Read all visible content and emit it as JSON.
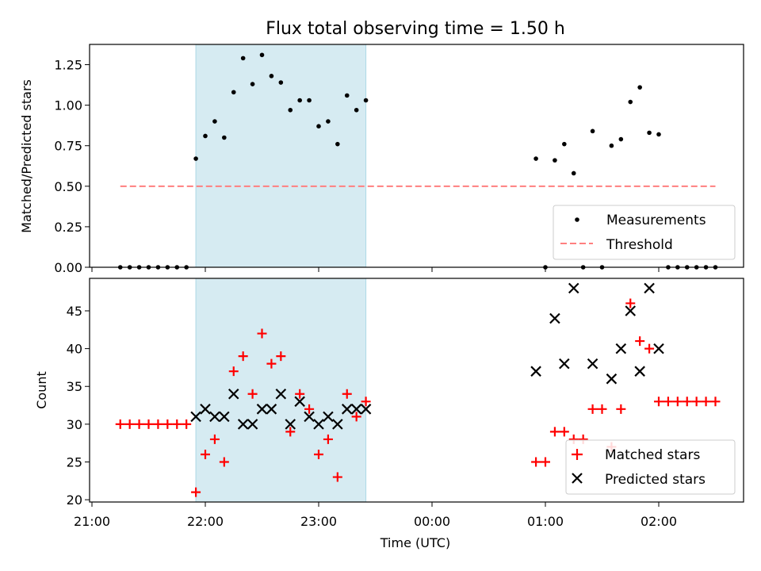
{
  "title": "Flux total observing time = 1.50 h",
  "colors": {
    "span": "#add8e6",
    "threshold": "#ff7f7f",
    "matched": "#ff0000",
    "predicted": "#000000",
    "measurement": "#000000"
  },
  "chart_data": [
    {
      "type": "scatter",
      "ylabel": "Matched/Predicted stars",
      "ylim": [
        0,
        1.375
      ],
      "yticks": [
        0.0,
        0.25,
        0.5,
        0.75,
        1.0,
        1.25
      ],
      "ytick_labels": [
        "0.00",
        "0.25",
        "0.50",
        "0.75",
        "1.00",
        "1.25"
      ],
      "shaded_span": [
        "21:55",
        "23:25"
      ],
      "threshold": {
        "name": "Threshold",
        "value": 0.5,
        "x_start": "21:15",
        "x_end": "02:30",
        "style": "dashed"
      },
      "legend": "lower-right",
      "series": [
        {
          "name": "Measurements",
          "marker": "dot",
          "points": [
            [
              "21:15",
              0
            ],
            [
              "21:20",
              0
            ],
            [
              "21:25",
              0
            ],
            [
              "21:30",
              0
            ],
            [
              "21:35",
              0
            ],
            [
              "21:40",
              0
            ],
            [
              "21:45",
              0
            ],
            [
              "21:50",
              0
            ],
            [
              "21:55",
              0.67
            ],
            [
              "22:00",
              0.81
            ],
            [
              "22:05",
              0.9
            ],
            [
              "22:10",
              0.8
            ],
            [
              "22:15",
              1.08
            ],
            [
              "22:20",
              1.29
            ],
            [
              "22:25",
              1.13
            ],
            [
              "22:30",
              1.31
            ],
            [
              "22:35",
              1.18
            ],
            [
              "22:40",
              1.14
            ],
            [
              "22:45",
              0.97
            ],
            [
              "22:50",
              1.03
            ],
            [
              "22:55",
              1.03
            ],
            [
              "23:00",
              0.87
            ],
            [
              "23:05",
              0.9
            ],
            [
              "23:10",
              0.76
            ],
            [
              "23:15",
              1.06
            ],
            [
              "23:20",
              0.97
            ],
            [
              "23:25",
              1.03
            ],
            [
              "00:55",
              0.67
            ],
            [
              "01:00",
              0
            ],
            [
              "01:05",
              0.66
            ],
            [
              "01:10",
              0.76
            ],
            [
              "01:15",
              0.58
            ],
            [
              "01:20",
              0
            ],
            [
              "01:25",
              0.84
            ],
            [
              "01:30",
              0
            ],
            [
              "01:35",
              0.75
            ],
            [
              "01:40",
              0.79
            ],
            [
              "01:45",
              1.02
            ],
            [
              "01:50",
              1.11
            ],
            [
              "01:55",
              0.83
            ],
            [
              "02:00",
              0.82
            ],
            [
              "02:05",
              0
            ],
            [
              "02:10",
              0
            ],
            [
              "02:15",
              0
            ],
            [
              "02:20",
              0
            ],
            [
              "02:25",
              0
            ],
            [
              "02:30",
              0
            ]
          ]
        }
      ]
    },
    {
      "type": "scatter",
      "xlabel": "Time (UTC)",
      "ylabel": "Count",
      "ylim": [
        19.7,
        49.3
      ],
      "yticks": [
        20,
        25,
        30,
        35,
        40,
        45
      ],
      "ytick_labels": [
        "20",
        "25",
        "30",
        "35",
        "40",
        "45"
      ],
      "xticks": [
        "21:00",
        "22:00",
        "23:00",
        "00:00",
        "01:00",
        "02:00"
      ],
      "shaded_span": [
        "21:55",
        "23:25"
      ],
      "legend": "lower-right",
      "series": [
        {
          "name": "Matched stars",
          "marker": "plus",
          "points": [
            [
              "21:15",
              30
            ],
            [
              "21:20",
              30
            ],
            [
              "21:25",
              30
            ],
            [
              "21:30",
              30
            ],
            [
              "21:35",
              30
            ],
            [
              "21:40",
              30
            ],
            [
              "21:45",
              30
            ],
            [
              "21:50",
              30
            ],
            [
              "21:55",
              21
            ],
            [
              "22:00",
              26
            ],
            [
              "22:05",
              28
            ],
            [
              "22:10",
              25
            ],
            [
              "22:15",
              37
            ],
            [
              "22:20",
              39
            ],
            [
              "22:25",
              34
            ],
            [
              "22:30",
              42
            ],
            [
              "22:35",
              38
            ],
            [
              "22:40",
              39
            ],
            [
              "22:45",
              29
            ],
            [
              "22:50",
              34
            ],
            [
              "22:55",
              32
            ],
            [
              "23:00",
              26
            ],
            [
              "23:05",
              28
            ],
            [
              "23:10",
              23
            ],
            [
              "23:15",
              34
            ],
            [
              "23:20",
              31
            ],
            [
              "23:25",
              33
            ],
            [
              "00:55",
              25
            ],
            [
              "01:00",
              25
            ],
            [
              "01:05",
              29
            ],
            [
              "01:10",
              29
            ],
            [
              "01:15",
              28
            ],
            [
              "01:20",
              28
            ],
            [
              "01:25",
              32
            ],
            [
              "01:30",
              32
            ],
            [
              "01:35",
              27
            ],
            [
              "01:40",
              32
            ],
            [
              "01:45",
              46
            ],
            [
              "01:50",
              41
            ],
            [
              "01:55",
              40
            ],
            [
              "02:00",
              33
            ],
            [
              "02:05",
              33
            ],
            [
              "02:10",
              33
            ],
            [
              "02:15",
              33
            ],
            [
              "02:20",
              33
            ],
            [
              "02:25",
              33
            ],
            [
              "02:30",
              33
            ]
          ]
        },
        {
          "name": "Predicted stars",
          "marker": "x",
          "points": [
            [
              "21:55",
              31
            ],
            [
              "22:00",
              32
            ],
            [
              "22:05",
              31
            ],
            [
              "22:10",
              31
            ],
            [
              "22:15",
              34
            ],
            [
              "22:20",
              30
            ],
            [
              "22:25",
              30
            ],
            [
              "22:30",
              32
            ],
            [
              "22:35",
              32
            ],
            [
              "22:40",
              34
            ],
            [
              "22:45",
              30
            ],
            [
              "22:50",
              33
            ],
            [
              "22:55",
              31
            ],
            [
              "23:00",
              30
            ],
            [
              "23:05",
              31
            ],
            [
              "23:10",
              30
            ],
            [
              "23:15",
              32
            ],
            [
              "23:20",
              32
            ],
            [
              "23:25",
              32
            ],
            [
              "00:55",
              37
            ],
            [
              "01:05",
              44
            ],
            [
              "01:10",
              38
            ],
            [
              "01:15",
              48
            ],
            [
              "01:25",
              38
            ],
            [
              "01:35",
              36
            ],
            [
              "01:40",
              40
            ],
            [
              "01:45",
              45
            ],
            [
              "01:50",
              37
            ],
            [
              "01:55",
              48
            ],
            [
              "02:00",
              40
            ]
          ]
        }
      ]
    }
  ]
}
